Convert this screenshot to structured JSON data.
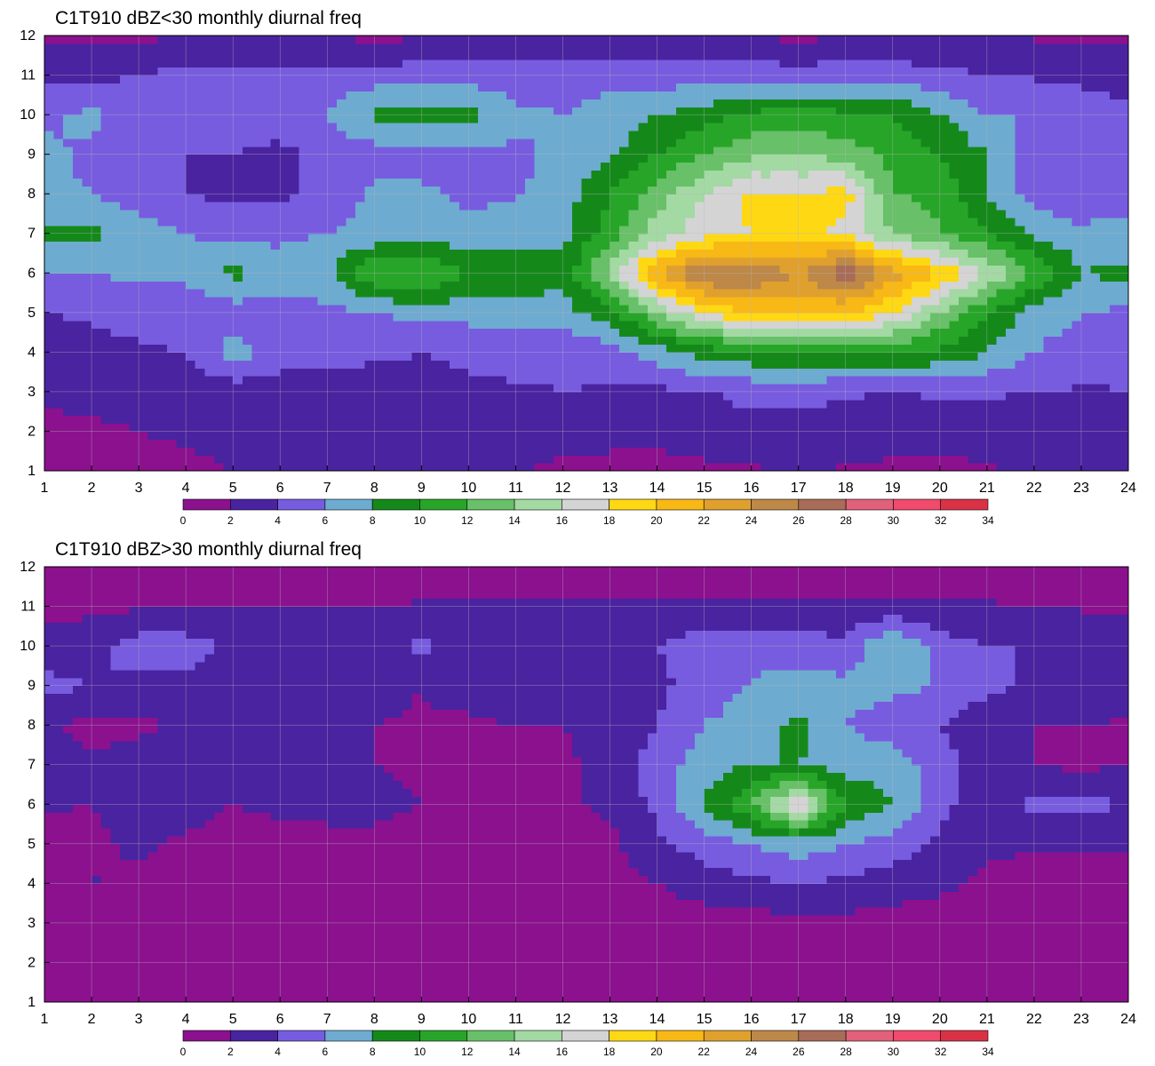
{
  "colors": {
    "levels": [
      "#8b118e",
      "#4a23a0",
      "#775ce0",
      "#6eabd0",
      "#14891a",
      "#27a528",
      "#68c068",
      "#a3d9a3",
      "#d4d4d4",
      "#ffd814",
      "#f8b816",
      "#e0a02e",
      "#bd8848",
      "#a86c58",
      "#e1607a",
      "#f04a6c",
      "#d93246"
    ],
    "contour_line": "#e8a838",
    "grid": "#b8b8b8"
  },
  "chart_data": [
    {
      "type": "heatmap",
      "title": "C1T910 dBZ<30 monthly diurnal freq",
      "xlabel": "",
      "ylabel": "",
      "xlim": [
        1,
        24
      ],
      "ylim": [
        1,
        12
      ],
      "x_ticks": [
        "1",
        "2",
        "3",
        "4",
        "5",
        "6",
        "7",
        "8",
        "9",
        "10",
        "11",
        "12",
        "13",
        "14",
        "15",
        "16",
        "17",
        "18",
        "19",
        "20",
        "21",
        "22",
        "23",
        "24"
      ],
      "y_ticks": [
        "1",
        "2",
        "3",
        "4",
        "5",
        "6",
        "7",
        "8",
        "9",
        "10",
        "11",
        "12"
      ],
      "colorbar_ticks": [
        "0",
        "2",
        "4",
        "6",
        "8",
        "10",
        "12",
        "14",
        "16",
        "18",
        "20",
        "22",
        "24",
        "26",
        "28",
        "30",
        "32",
        "34"
      ],
      "grid": true,
      "values": [
        [
          1.5,
          1.0,
          0.8,
          1.2,
          2.0,
          2.5,
          3.0,
          3.5,
          3.0,
          2.5,
          2.2,
          1.5,
          1.2,
          1.0,
          1.5,
          1.8,
          2.0,
          1.8,
          1.6,
          1.4,
          1.8,
          2.5,
          3.0,
          3.0
        ],
        [
          1.0,
          1.5,
          2.0,
          2.5,
          2.8,
          3.0,
          3.2,
          3.5,
          3.5,
          3.2,
          3.0,
          2.8,
          2.8,
          2.9,
          3.2,
          3.5,
          3.5,
          3.3,
          2.8,
          2.8,
          2.8,
          3.0,
          3.2,
          3.6
        ],
        [
          2.5,
          3.0,
          3.2,
          3.0,
          2.8,
          3.0,
          3.2,
          3.4,
          3.6,
          3.8,
          3.8,
          4.0,
          3.8,
          3.6,
          3.8,
          4.5,
          4.4,
          4.2,
          4.0,
          4.2,
          4.2,
          4.0,
          3.8,
          4.0
        ],
        [
          3.0,
          3.5,
          3.8,
          4.0,
          7.0,
          5.0,
          4.5,
          4.2,
          4.0,
          4.2,
          4.5,
          4.4,
          5.0,
          7.0,
          9.0,
          9.5,
          10.0,
          10.0,
          10.2,
          9.5,
          8.0,
          6.0,
          5.0,
          4.5
        ],
        [
          4.0,
          4.2,
          4.5,
          4.8,
          5.0,
          5.0,
          5.5,
          6.0,
          6.5,
          6.8,
          7.0,
          7.2,
          9.0,
          14.0,
          18.0,
          20.0,
          20.0,
          20.0,
          18.0,
          14.0,
          10.0,
          7.0,
          6.0,
          5.5
        ],
        [
          6.0,
          6.0,
          6.5,
          6.5,
          8.5,
          7.0,
          7.5,
          12.0,
          12.5,
          10.0,
          9.5,
          8.5,
          15.0,
          22.0,
          26.5,
          26.0,
          24.0,
          27.5,
          23.0,
          20.0,
          16.0,
          12.0,
          8.0,
          8.5
        ],
        [
          8.5,
          8.5,
          7.0,
          6.0,
          5.5,
          5.5,
          6.0,
          6.5,
          6.5,
          6.8,
          7.0,
          7.5,
          11.0,
          15.0,
          17.0,
          18.0,
          18.5,
          17.5,
          14.0,
          12.0,
          10.0,
          7.5,
          6.5,
          7.0
        ],
        [
          6.5,
          6.0,
          5.0,
          4.0,
          3.5,
          3.6,
          4.5,
          6.5,
          6.5,
          5.5,
          5.8,
          7.0,
          10.0,
          13.0,
          16.0,
          18.5,
          18.0,
          19.0,
          12.0,
          11.5,
          8.0,
          5.0,
          4.5,
          5.0
        ],
        [
          6.5,
          5.5,
          5.0,
          4.0,
          4.0,
          3.5,
          4.5,
          5.0,
          5.0,
          5.5,
          5.5,
          6.5,
          7.5,
          10.0,
          12.0,
          13.5,
          14.0,
          13.0,
          11.5,
          10.0,
          8.0,
          5.0,
          4.0,
          5.0
        ],
        [
          5.5,
          6.5,
          5.0,
          4.5,
          4.8,
          5.0,
          6.0,
          8.5,
          8.5,
          9.0,
          6.5,
          6.0,
          7.0,
          8.0,
          9.0,
          10.5,
          11.0,
          10.5,
          10.0,
          8.0,
          6.0,
          6.0,
          5.0,
          4.5
        ],
        [
          3.5,
          3.5,
          4.0,
          4.5,
          4.5,
          4.5,
          4.8,
          5.0,
          5.0,
          5.0,
          4.8,
          5.0,
          5.2,
          5.0,
          5.0,
          5.0,
          5.0,
          5.0,
          5.0,
          4.5,
          4.0,
          3.8,
          3.5,
          3.2
        ],
        [
          1.5,
          1.5,
          1.6,
          2.0,
          2.2,
          2.0,
          2.0,
          1.5,
          1.8,
          2.0,
          2.2,
          2.2,
          2.0,
          2.0,
          2.0,
          1.8,
          1.6,
          1.8,
          2.0,
          2.2,
          2.0,
          1.8,
          1.6,
          1.5
        ]
      ]
    },
    {
      "type": "heatmap",
      "title": "C1T910 dBZ>30 monthly diurnal freq",
      "xlabel": "",
      "ylabel": "",
      "xlim": [
        1,
        24
      ],
      "ylim": [
        1,
        12
      ],
      "x_ticks": [
        "1",
        "2",
        "3",
        "4",
        "5",
        "6",
        "7",
        "8",
        "9",
        "10",
        "11",
        "12",
        "13",
        "14",
        "15",
        "16",
        "17",
        "18",
        "19",
        "20",
        "21",
        "22",
        "23",
        "24"
      ],
      "y_ticks": [
        "1",
        "2",
        "3",
        "4",
        "5",
        "6",
        "7",
        "8",
        "9",
        "10",
        "11",
        "12"
      ],
      "colorbar_ticks": [
        "0",
        "2",
        "4",
        "6",
        "8",
        "10",
        "12",
        "14",
        "16",
        "18",
        "20",
        "22",
        "24",
        "26",
        "28",
        "30",
        "32",
        "34"
      ],
      "grid": true,
      "values": [
        [
          0.3,
          0.3,
          0.3,
          0.3,
          0.3,
          0.3,
          0.3,
          0.3,
          0.3,
          0.3,
          0.3,
          0.3,
          0.3,
          0.3,
          0.3,
          0.3,
          0.3,
          0.3,
          0.3,
          0.3,
          0.3,
          0.3,
          0.3,
          0.3
        ],
        [
          0.4,
          0.4,
          0.4,
          0.4,
          0.4,
          0.4,
          0.4,
          0.4,
          0.4,
          0.4,
          0.4,
          0.4,
          0.4,
          0.4,
          0.4,
          0.4,
          0.4,
          0.4,
          0.4,
          0.4,
          0.4,
          0.4,
          0.4,
          0.4
        ],
        [
          0.5,
          0.5,
          0.5,
          0.5,
          0.5,
          0.5,
          0.5,
          0.5,
          0.5,
          0.5,
          0.5,
          0.5,
          0.5,
          0.8,
          1.0,
          1.2,
          1.5,
          1.4,
          1.2,
          1.0,
          0.8,
          0.6,
          0.5,
          0.5
        ],
        [
          0.6,
          2.2,
          1.5,
          0.8,
          0.6,
          0.8,
          0.8,
          0.6,
          0.6,
          0.6,
          0.6,
          0.6,
          1.0,
          2.0,
          3.0,
          3.5,
          4.0,
          3.5,
          3.0,
          2.5,
          1.5,
          1.0,
          0.8,
          0.6
        ],
        [
          0.8,
          1.5,
          2.5,
          1.5,
          1.0,
          1.2,
          1.5,
          1.8,
          1.5,
          1.0,
          1.0,
          1.0,
          1.5,
          3.5,
          5.0,
          6.0,
          7.0,
          6.0,
          5.0,
          3.5,
          2.5,
          2.2,
          2.5,
          2.2
        ],
        [
          2.2,
          2.0,
          3.0,
          3.0,
          2.0,
          2.5,
          2.5,
          2.2,
          2.0,
          1.5,
          1.5,
          1.5,
          2.5,
          4.5,
          8.5,
          12.0,
          18.0,
          10.0,
          8.0,
          4.5,
          3.0,
          4.5,
          4.5,
          4.0
        ],
        [
          2.5,
          2.5,
          3.0,
          3.5,
          2.5,
          2.5,
          2.2,
          2.0,
          1.8,
          1.5,
          1.5,
          1.5,
          3.0,
          5.0,
          7.0,
          8.0,
          8.0,
          7.0,
          7.0,
          5.0,
          3.0,
          2.0,
          1.5,
          2.0
        ],
        [
          2.5,
          1.2,
          1.5,
          2.5,
          3.0,
          2.5,
          2.2,
          2.0,
          1.8,
          1.5,
          2.0,
          2.0,
          2.5,
          4.0,
          6.0,
          7.0,
          8.5,
          6.0,
          5.0,
          4.0,
          2.5,
          2.0,
          2.0,
          1.8
        ],
        [
          4.5,
          4.0,
          3.5,
          3.5,
          3.0,
          3.0,
          2.5,
          2.5,
          2.0,
          3.0,
          4.0,
          2.5,
          2.5,
          3.5,
          5.0,
          6.0,
          7.0,
          6.5,
          6.5,
          6.0,
          4.5,
          3.5,
          3.0,
          3.0
        ],
        [
          3.0,
          3.5,
          5.0,
          5.0,
          3.5,
          3.0,
          2.0,
          2.5,
          4.5,
          2.5,
          3.0,
          3.0,
          3.5,
          4.0,
          5.0,
          5.5,
          5.0,
          4.5,
          8.5,
          5.0,
          4.0,
          4.0,
          4.0,
          4.0
        ],
        [
          1.2,
          1.5,
          1.8,
          2.0,
          2.0,
          2.0,
          2.0,
          2.0,
          2.2,
          2.2,
          2.2,
          2.5,
          2.4,
          2.3,
          2.4,
          2.3,
          2.3,
          2.4,
          2.6,
          2.3,
          2.2,
          2.0,
          1.8,
          1.5
        ],
        [
          0.5,
          0.5,
          0.5,
          0.5,
          0.5,
          0.5,
          0.5,
          0.5,
          0.5,
          0.5,
          0.5,
          0.5,
          0.5,
          0.5,
          0.5,
          0.5,
          0.5,
          0.5,
          0.5,
          0.5,
          0.5,
          0.5,
          0.5,
          0.5
        ]
      ]
    }
  ]
}
